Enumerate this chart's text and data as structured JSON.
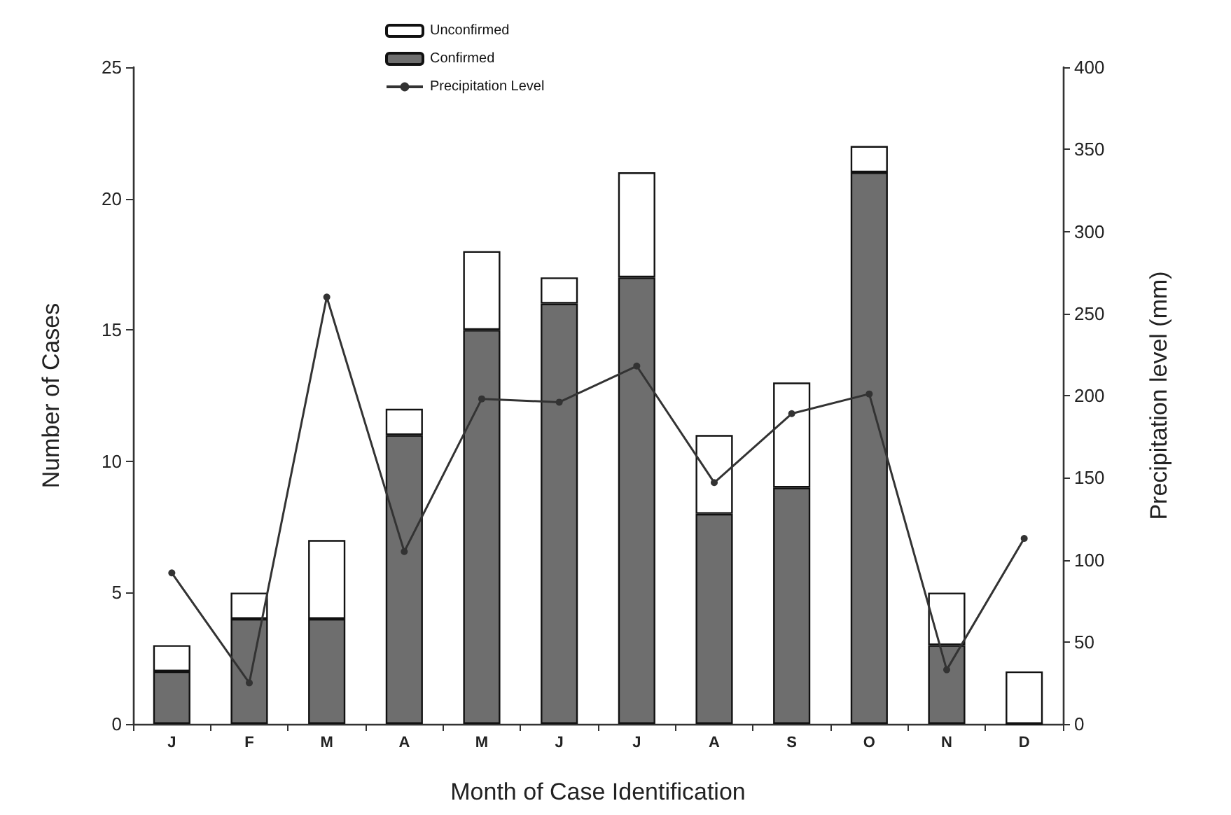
{
  "chart_data": {
    "type": "bar",
    "stacked": true,
    "xlabel": "Month of Case Identification",
    "ylabel": "Number of Cases",
    "y2label": "Precipitation level (mm)",
    "categories": [
      "J",
      "F",
      "M",
      "A",
      "M",
      "J",
      "J",
      "A",
      "S",
      "O",
      "N",
      "D"
    ],
    "series": [
      {
        "name": "Confirmed",
        "color": "#6e6e6e",
        "values": [
          2,
          4,
          4,
          11,
          15,
          16,
          17,
          8,
          9,
          21,
          3,
          0
        ]
      },
      {
        "name": "Unconfirmed",
        "color": "#ffffff",
        "values": [
          1,
          1,
          3,
          1,
          3,
          1,
          4,
          3,
          4,
          1,
          2,
          2
        ]
      },
      {
        "name": "Precipitation Level",
        "type": "line",
        "axis": "y2",
        "color": "#333333",
        "marker": "circle",
        "values": [
          92,
          25,
          260,
          105,
          198,
          196,
          218,
          147,
          189,
          201,
          33,
          113
        ]
      }
    ],
    "ylim": [
      0,
      25
    ],
    "yticks": [
      0,
      5,
      10,
      15,
      20,
      25
    ],
    "y2lim": [
      0,
      400
    ],
    "y2ticks": [
      0,
      50,
      100,
      150,
      200,
      250,
      300,
      350,
      400
    ],
    "grid": false,
    "legend": "top"
  }
}
